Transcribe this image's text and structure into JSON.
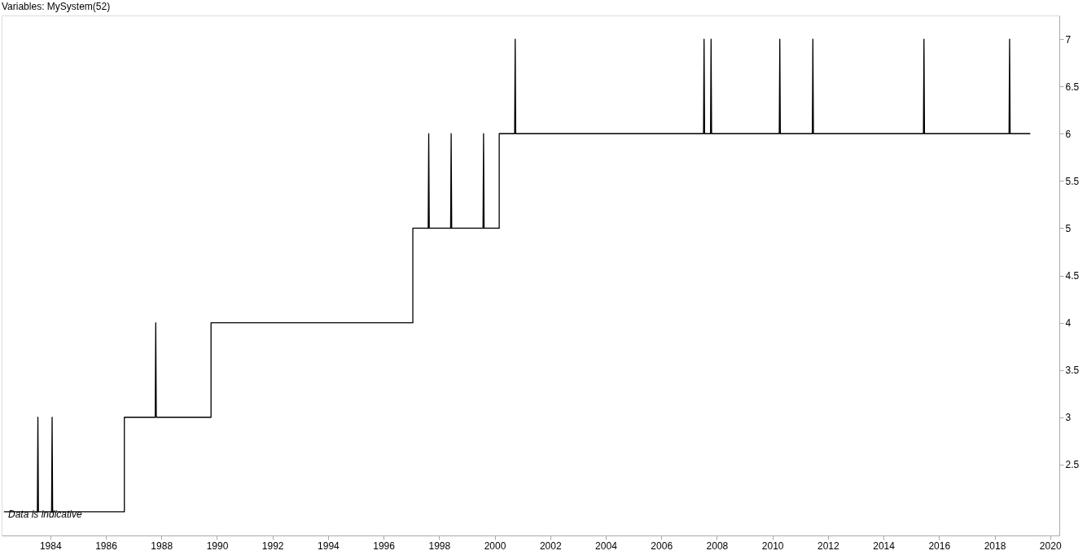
{
  "chart_data": {
    "type": "line",
    "title": "Variables: MySystem(52)",
    "annotations": [
      "Data is indicative"
    ],
    "x": [
      "1982-05-01",
      "1983-07-15",
      "1983-07-22",
      "1983-07-29",
      "1984-01-18",
      "1984-01-25",
      "1984-02-01",
      "1986-09-01",
      "1986-09-01",
      "1987-10-12",
      "1987-10-19",
      "1987-10-26",
      "1989-10-15",
      "1989-10-15",
      "1997-01-20",
      "1997-01-20",
      "1997-08-10",
      "1997-08-17",
      "1997-08-24",
      "1998-06-01",
      "1998-06-08",
      "1998-06-15",
      "1999-08-01",
      "1999-08-08",
      "1999-08-15",
      "2000-03-01",
      "2000-03-01",
      "2000-09-20",
      "2000-09-27",
      "2000-10-04",
      "2007-07-10",
      "2007-07-17",
      "2007-07-24",
      "2007-10-10",
      "2007-10-17",
      "2007-10-24",
      "2010-04-01",
      "2010-04-08",
      "2010-04-15",
      "2011-06-10",
      "2011-06-17",
      "2011-06-24",
      "2015-06-10",
      "2015-06-17",
      "2015-06-24",
      "2018-07-10",
      "2018-07-17",
      "2018-07-24",
      "2019-04-15"
    ],
    "series": [
      {
        "color": "#000000",
        "values": [
          2,
          2,
          3,
          2,
          2,
          3,
          2,
          2,
          3,
          3,
          4,
          3,
          3,
          4,
          4,
          5,
          5,
          6,
          5,
          5,
          6,
          5,
          5,
          6,
          5,
          5,
          6,
          6,
          7,
          6,
          6,
          7,
          6,
          6,
          7,
          6,
          6,
          7,
          6,
          6,
          7,
          6,
          6,
          7,
          6,
          6,
          7,
          6,
          6
        ]
      }
    ],
    "xlim": [
      "1982-04-01",
      "2020-05-01"
    ],
    "xticks": [
      "1984",
      "1986",
      "1988",
      "1990",
      "1992",
      "1994",
      "1996",
      "1998",
      "2000",
      "2002",
      "2004",
      "2006",
      "2008",
      "2010",
      "2012",
      "2014",
      "2016",
      "2018",
      "2020"
    ],
    "ylim": [
      1.75,
      7.25
    ],
    "yticks": [
      2.5,
      3,
      3.5,
      4,
      4.5,
      5,
      5.5,
      6,
      6.5,
      7
    ],
    "grid": false,
    "marker": "none",
    "line_style": "solid"
  }
}
